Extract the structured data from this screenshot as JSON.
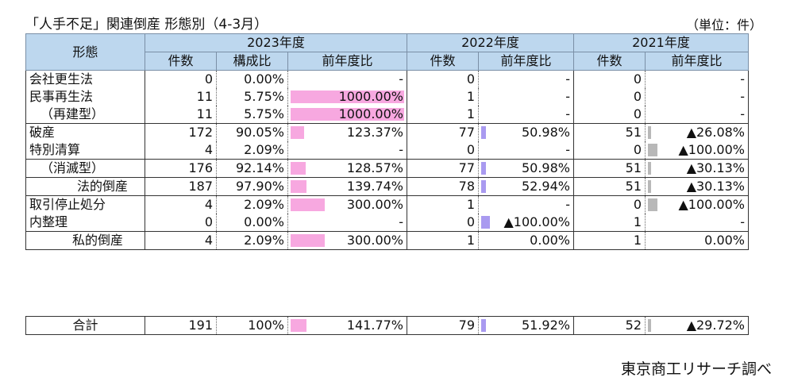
{
  "title": "「人手不足」関連倒産 形態別（4-3月）",
  "unit": "（単位：件）",
  "source": "東京商工リサーチ調べ",
  "header": {
    "category": "形態",
    "y2023": "2023年度",
    "y2022": "2022年度",
    "y2021": "2021年度",
    "count": "件数",
    "share": "構成比",
    "yoy": "前年度比"
  },
  "colors": {
    "y2023": "#f7a8e0",
    "y2022": "#a99af0",
    "y2021": "#b8b8b8"
  },
  "rows": [
    {
      "label": "会社更生法",
      "c23": "0",
      "s23": "0.00%",
      "y23": "-",
      "c22": "0",
      "y22": "-",
      "c21": "0",
      "y21": "-",
      "b23": 0,
      "b22": 0,
      "b21": 0
    },
    {
      "label": "民事再生法",
      "c23": "11",
      "s23": "5.75%",
      "y23": "1000.00%",
      "c22": "1",
      "y22": "-",
      "c21": "0",
      "y21": "-",
      "b23": 1.0,
      "b22": 0,
      "b21": 0
    },
    {
      "label": "（再建型）",
      "c23": "11",
      "s23": "5.75%",
      "y23": "1000.00%",
      "c22": "1",
      "y22": "-",
      "c21": "0",
      "y21": "-",
      "b23": 1.0,
      "b22": 0,
      "b21": 0
    },
    {
      "label": "破産",
      "c23": "172",
      "s23": "90.05%",
      "y23": "123.37%",
      "c22": "77",
      "y22": "50.98%",
      "c21": "51",
      "y21": "▲26.08%",
      "b23": 0.12,
      "b22": 0.05,
      "b21": 0.03
    },
    {
      "label": "特別清算",
      "c23": "4",
      "s23": "2.09%",
      "y23": "-",
      "c22": "0",
      "y22": "-",
      "c21": "0",
      "y21": "▲100.00%",
      "b23": 0,
      "b22": 0,
      "b21": 0.1
    },
    {
      "label": "（消滅型）",
      "c23": "176",
      "s23": "92.14%",
      "y23": "128.57%",
      "c22": "77",
      "y22": "50.98%",
      "c21": "51",
      "y21": "▲30.13%",
      "b23": 0.13,
      "b22": 0.05,
      "b21": 0.03
    },
    {
      "label": "法的倒産",
      "c23": "187",
      "s23": "97.90%",
      "y23": "139.74%",
      "c22": "78",
      "y22": "52.94%",
      "c21": "51",
      "y21": "▲30.13%",
      "b23": 0.14,
      "b22": 0.05,
      "b21": 0.03
    },
    {
      "label": "取引停止処分",
      "c23": "4",
      "s23": "2.09%",
      "y23": "300.00%",
      "c22": "1",
      "y22": "-",
      "c21": "0",
      "y21": "▲100.00%",
      "b23": 0.3,
      "b22": 0,
      "b21": 0.1
    },
    {
      "label": "内整理",
      "c23": "0",
      "s23": "0.00%",
      "y23": "-",
      "c22": "0",
      "y22": "▲100.00%",
      "c21": "1",
      "y21": "-",
      "b23": 0,
      "b22": 0.1,
      "b21": 0
    },
    {
      "label": "私的倒産",
      "c23": "4",
      "s23": "2.09%",
      "y23": "300.00%",
      "c22": "1",
      "y22": "0.00%",
      "c21": "1",
      "y21": "0.00%",
      "b23": 0.3,
      "b22": 0,
      "b21": 0
    }
  ],
  "total": {
    "label": "合計",
    "c23": "191",
    "s23": "100%",
    "y23": "141.77%",
    "c22": "79",
    "y22": "51.92%",
    "c21": "52",
    "y21": "▲29.72%",
    "b23": 0.14,
    "b22": 0.05,
    "b21": 0.03
  }
}
